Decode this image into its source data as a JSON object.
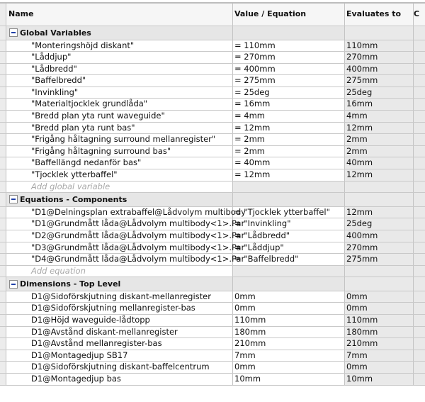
{
  "columns": {
    "name": "Name",
    "value": "Value / Equation",
    "evaluates": "Evaluates to",
    "comment": "C"
  },
  "groups": [
    {
      "title": "Global Variables",
      "add_label": "Add global variable",
      "rows": [
        {
          "name": "\"Monteringshöjd diskant\"",
          "value": "= 110mm",
          "eval": "110mm"
        },
        {
          "name": "\"Låddjup\"",
          "value": "= 270mm",
          "eval": "270mm"
        },
        {
          "name": "\"Lådbredd\"",
          "value": "= 400mm",
          "eval": "400mm"
        },
        {
          "name": "\"Baffelbredd\"",
          "value": "= 275mm",
          "eval": "275mm"
        },
        {
          "name": "\"Invinkling\"",
          "value": "= 25deg",
          "eval": "25deg"
        },
        {
          "name": "\"Materialtjocklek grundlåda\"",
          "value": "= 16mm",
          "eval": "16mm"
        },
        {
          "name": "\"Bredd plan yta runt waveguide\"",
          "value": "= 4mm",
          "eval": "4mm"
        },
        {
          "name": "\"Bredd plan yta runt bas\"",
          "value": "= 12mm",
          "eval": "12mm"
        },
        {
          "name": "\"Frigång håltagning surround mellanregister\"",
          "value": "= 2mm",
          "eval": "2mm"
        },
        {
          "name": "\"Frigång håltagning surround bas\"",
          "value": "= 2mm",
          "eval": "2mm"
        },
        {
          "name": "\"Baffellängd nedanför bas\"",
          "value": "= 40mm",
          "eval": "40mm"
        },
        {
          "name": "\"Tjocklek ytterbaffel\"",
          "value": "= 12mm",
          "eval": "12mm"
        }
      ]
    },
    {
      "title": "Equations - Components",
      "add_label": "Add equation",
      "rows": [
        {
          "name": "\"D1@Delningsplan extrabaffel@Lådvolym multibody",
          "value": "= \"Tjocklek ytterbaffel\"",
          "eval": "12mm"
        },
        {
          "name": "\"D1@Grundmått låda@Lådvolym multibody<1>.Par",
          "value": "= \"Invinkling\"",
          "eval": "25deg"
        },
        {
          "name": "\"D2@Grundmått låda@Lådvolym multibody<1>.Par",
          "value": "= \"Lådbredd\"",
          "eval": "400mm"
        },
        {
          "name": "\"D3@Grundmått låda@Lådvolym multibody<1>.Par",
          "value": "= \"Låddjup\"",
          "eval": "270mm"
        },
        {
          "name": "\"D4@Grundmått låda@Lådvolym multibody<1>.Par",
          "value": "= \"Baffelbredd\"",
          "eval": "275mm"
        }
      ]
    },
    {
      "title": "Dimensions - Top Level",
      "rows": [
        {
          "name": "D1@Sidoförskjutning diskant-mellanregister",
          "value": "0mm",
          "eval": "0mm"
        },
        {
          "name": "D1@Sidoförskjutning mellanregister-bas",
          "value": "0mm",
          "eval": "0mm"
        },
        {
          "name": "D1@Höjd waveguide-lådtopp",
          "value": "110mm",
          "eval": "110mm"
        },
        {
          "name": "D1@Avstånd diskant-mellanregister",
          "value": "180mm",
          "eval": "180mm"
        },
        {
          "name": "D1@Avstånd mellanregister-bas",
          "value": "210mm",
          "eval": "210mm"
        },
        {
          "name": "D1@Montagedjup SB17",
          "value": "7mm",
          "eval": "7mm"
        },
        {
          "name": "D1@Sidoförskjutning diskant-baffelcentrum",
          "value": "0mm",
          "eval": "0mm"
        },
        {
          "name": "D1@Montagedjup bas",
          "value": "10mm",
          "eval": "10mm"
        }
      ]
    }
  ]
}
